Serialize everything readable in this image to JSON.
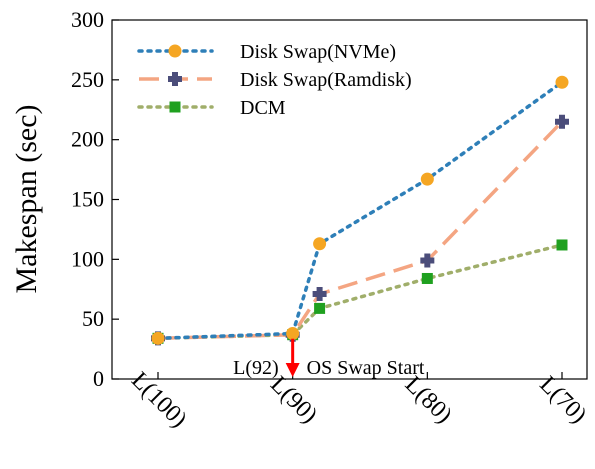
{
  "chart_data": {
    "type": "line",
    "categories": [
      "L(100)",
      "L(90)",
      "L(80)",
      "L(70)"
    ],
    "x": [
      100,
      90,
      80,
      70
    ],
    "ylabel": "Makespan (sec)",
    "xlabel": "",
    "ylim": [
      0,
      300
    ],
    "yticks": [
      0,
      50,
      100,
      150,
      200,
      250,
      300
    ],
    "grid": false,
    "legend_position": "top-left",
    "series": [
      {
        "name": "Disk Swap(NVMe)",
        "color": "#2e7fb8",
        "line_style": "dotted",
        "marker": "circle",
        "marker_color": "#f5a623",
        "points": [
          [
            100,
            34
          ],
          [
            90,
            38
          ],
          [
            88,
            113
          ],
          [
            80,
            167
          ],
          [
            70,
            248
          ]
        ]
      },
      {
        "name": "Disk Swap(Ramdisk)",
        "color": "#f4a582",
        "line_style": "dashed",
        "marker": "plus",
        "marker_color": "#4b4d7a",
        "points": [
          [
            100,
            34
          ],
          [
            90,
            37
          ],
          [
            88,
            71
          ],
          [
            80,
            99
          ],
          [
            70,
            215
          ]
        ]
      },
      {
        "name": "DCM",
        "color": "#a0ae6a",
        "line_style": "dotted",
        "marker": "square",
        "marker_color": "#1fa01f",
        "points": [
          [
            100,
            34
          ],
          [
            90,
            37
          ],
          [
            88,
            59
          ],
          [
            80,
            84
          ],
          [
            70,
            112
          ]
        ]
      }
    ],
    "annotations": [
      {
        "text_left": "L(92)",
        "text_right": "OS Swap Start",
        "x": 90,
        "y_from": 37,
        "y_to": 0,
        "color": "#ff0000"
      }
    ]
  }
}
